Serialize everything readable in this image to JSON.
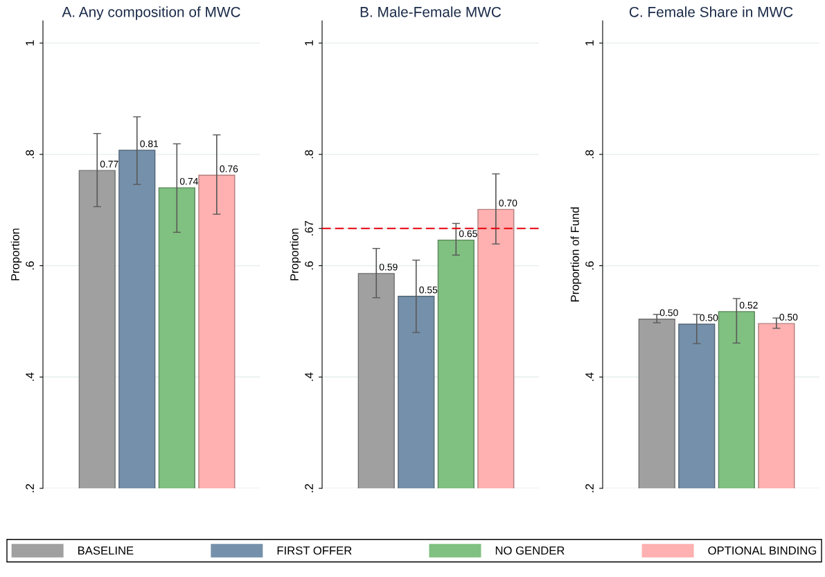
{
  "chart_data": [
    {
      "type": "bar",
      "title": "A. Any composition of MWC",
      "ylabel": "Proportion",
      "categories": [
        null
      ],
      "ylim": [
        0.2,
        1.04
      ],
      "yticks": [
        {
          "value": 0.2,
          "label": ".2"
        },
        {
          "value": 0.4,
          "label": ".4"
        },
        {
          "value": 0.6,
          "label": ".6"
        },
        {
          "value": 0.8,
          "label": ".8"
        },
        {
          "value": 1,
          "label": "1"
        }
      ],
      "grid": "y",
      "tick_labels": "y",
      "legend": "bottom",
      "series": [
        {
          "name": "BASELINE",
          "color": "#a0a0a0",
          "values": [
            0.771
          ],
          "errors": [
            [
              0.706,
              0.8375
            ]
          ],
          "value_labels": [
            "0.77"
          ]
        },
        {
          "name": "FIRST OFFER",
          "color": "#7590aa",
          "values": [
            0.8075
          ],
          "errors": [
            [
              0.746,
              0.8675
            ]
          ],
          "value_labels": [
            "0.81"
          ]
        },
        {
          "name": "NO GENDER",
          "color": "#80c080",
          "values": [
            0.74
          ],
          "errors": [
            [
              0.66,
              0.819
            ]
          ],
          "value_labels": [
            "0.74"
          ]
        },
        {
          "name": "OPTIONAL BINDING",
          "color": "#ffb0b0",
          "values": [
            0.7625
          ],
          "errors": [
            [
              0.6925,
              0.835
            ]
          ],
          "value_labels": [
            "0.76"
          ]
        }
      ]
    },
    {
      "type": "bar",
      "title": "B. Male-Female MWC",
      "ylabel": "Proportion",
      "categories": [
        null
      ],
      "ylim": [
        0.2,
        1.04
      ],
      "yticks": [
        {
          "value": 0.2,
          "label": ".2"
        },
        {
          "value": 0.4,
          "label": ".4"
        },
        {
          "value": 0.6,
          "label": ".6"
        },
        {
          "value": 0.667,
          "label": ".67"
        },
        {
          "value": 0.8,
          "label": ".8"
        },
        {
          "value": 1,
          "label": "1"
        }
      ],
      "grid": "y",
      "tick_labels": "y",
      "ref_lines": [
        {
          "axis": "y",
          "value": 0.667,
          "color": "#e8000b",
          "line_style": "dashed"
        }
      ],
      "series": [
        {
          "color": "#a0a0a0",
          "values": [
            0.586
          ],
          "errors": [
            [
              0.5425,
              0.631
            ]
          ],
          "value_labels": [
            "0.59"
          ]
        },
        {
          "color": "#7590aa",
          "values": [
            0.545
          ],
          "errors": [
            [
              0.48,
              0.61
            ]
          ],
          "value_labels": [
            "0.55"
          ]
        },
        {
          "color": "#80c080",
          "values": [
            0.646
          ],
          "errors": [
            [
              0.619,
              0.676
            ]
          ],
          "value_labels": [
            "0.65"
          ]
        },
        {
          "color": "#ffb0b0",
          "values": [
            0.701
          ],
          "errors": [
            [
              0.639,
              0.765
            ]
          ],
          "value_labels": [
            "0.70"
          ]
        }
      ]
    },
    {
      "type": "bar",
      "title": "C. Female Share in MWC",
      "ylabel": "Proportion of Fund",
      "categories": [
        null
      ],
      "ylim": [
        0.2,
        1.04
      ],
      "yticks": [
        {
          "value": 0.2,
          "label": ".2"
        },
        {
          "value": 0.4,
          "label": ".4"
        },
        {
          "value": 0.6,
          "label": ".6"
        },
        {
          "value": 0.8,
          "label": ".8"
        },
        {
          "value": 1,
          "label": "1"
        }
      ],
      "grid": "y",
      "tick_labels": "y",
      "series": [
        {
          "color": "#a0a0a0",
          "values": [
            0.504
          ],
          "errors": [
            [
              0.4975,
              0.5125
            ]
          ],
          "value_labels": [
            "0.50"
          ]
        },
        {
          "color": "#7590aa",
          "values": [
            0.495
          ],
          "errors": [
            [
              0.46,
              0.5125
            ]
          ],
          "value_labels": [
            "0.50"
          ]
        },
        {
          "color": "#80c080",
          "values": [
            0.5175
          ],
          "errors": [
            [
              0.461,
              0.541
            ]
          ],
          "value_labels": [
            "0.52"
          ]
        },
        {
          "color": "#ffb0b0",
          "values": [
            0.496
          ],
          "errors": [
            [
              0.4875,
              0.506
            ]
          ],
          "value_labels": [
            "0.50"
          ]
        }
      ]
    }
  ]
}
